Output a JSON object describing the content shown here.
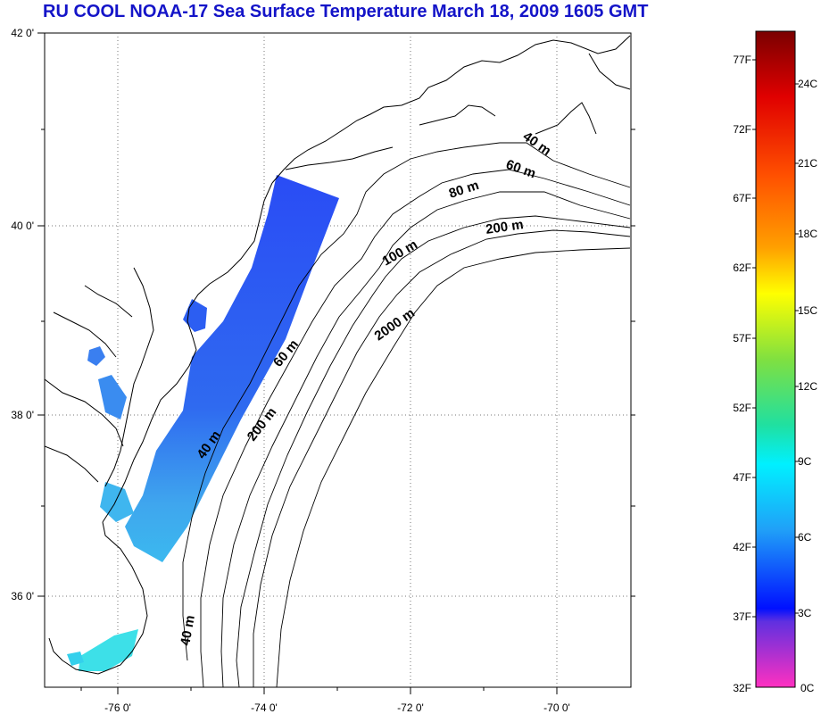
{
  "title": "RU COOL  NOAA-17 Sea Surface Temperature March 18, 2009 1605 GMT",
  "axes": {
    "lon_labels": [
      "-76 0'",
      "-74 0'",
      "-72 0'",
      "-70 0'"
    ],
    "lat_labels": [
      "42 0'",
      "40 0'",
      "38 0'",
      "36 0'"
    ]
  },
  "isobaths": [
    {
      "label": "40 m"
    },
    {
      "label": "60 m"
    },
    {
      "label": "80 m"
    },
    {
      "label": "200 m"
    },
    {
      "label": "100 m"
    },
    {
      "label": "2000 m"
    },
    {
      "label": "60 m"
    },
    {
      "label": "200 m"
    },
    {
      "label": "40 m"
    },
    {
      "label": "40 m"
    }
  ],
  "colorbar": {
    "fahrenheit_labels": [
      "77F",
      "72F",
      "67F",
      "62F",
      "57F",
      "52F",
      "47F",
      "42F",
      "37F",
      "32F"
    ],
    "celsius_labels": [
      "24C",
      "21C",
      "18C",
      "15C",
      "12C",
      "9C",
      "6C",
      "3C",
      "0C"
    ]
  },
  "colors": {
    "title": "#1414c8",
    "sst_cold": "#1e50ff",
    "sst_warm": "#32e6e6"
  }
}
